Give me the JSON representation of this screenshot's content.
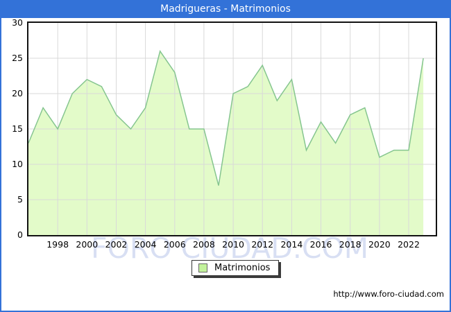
{
  "window": {
    "title": "Madrigueras - Matrimonios"
  },
  "watermark": "FORO CIUDAD.COM",
  "legend": {
    "label": "Matrimonios"
  },
  "footer": {
    "url": "http://www.foro-ciudad.com"
  },
  "colors": {
    "titlebar_bg": "#3372d8",
    "titlebar_text": "#ffffff",
    "frame_border": "#3372d8",
    "plot_border": "#111111",
    "grid": "#d9d9d9",
    "area_fill": "#e3fbc9",
    "area_line": "#85c58f",
    "legend_swatch": "#c3f29c",
    "watermark_text": "#b9c6ea"
  },
  "chart_data": {
    "type": "area",
    "title": "Madrigueras - Matrimonios",
    "series": [
      {
        "name": "Matrimonios",
        "x": [
          1996,
          1997,
          1998,
          1999,
          2000,
          2001,
          2002,
          2003,
          2004,
          2005,
          2006,
          2007,
          2008,
          2009,
          2010,
          2011,
          2012,
          2013,
          2014,
          2015,
          2016,
          2017,
          2018,
          2019,
          2020,
          2021,
          2022,
          2023
        ],
        "values": [
          13,
          18,
          15,
          20,
          22,
          21,
          17,
          15,
          18,
          26,
          23,
          15,
          15,
          7,
          20,
          21,
          24,
          19,
          22,
          12,
          16,
          13,
          17,
          18,
          11,
          12,
          12,
          25
        ]
      }
    ],
    "xlim": [
      1996,
      2023.85
    ],
    "ylim": [
      0,
      30
    ],
    "yticks": [
      0,
      5,
      10,
      15,
      20,
      25,
      30
    ],
    "xticks": [
      1998,
      2000,
      2002,
      2004,
      2006,
      2008,
      2010,
      2012,
      2014,
      2016,
      2018,
      2020,
      2022
    ],
    "grid": true,
    "legend_position": "bottom-center",
    "xlabel": "",
    "ylabel": ""
  }
}
